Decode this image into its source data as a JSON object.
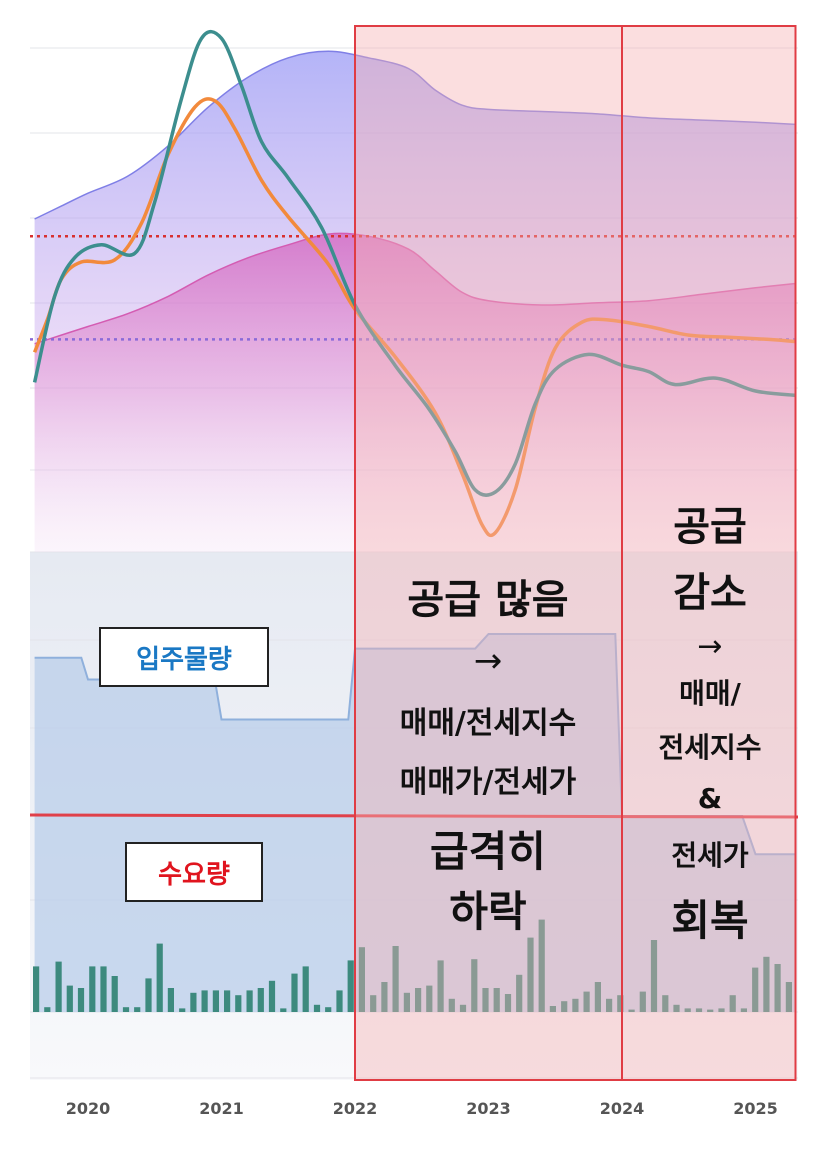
{
  "chart_data": {
    "type": "line",
    "x_axis": {
      "ticks": [
        "2020",
        "2021",
        "2022",
        "2023",
        "2024",
        "2025"
      ]
    },
    "series": [
      {
        "key": "purple_area",
        "color": "#8f8ff2",
        "points": [
          [
            2019.6,
            0.7
          ],
          [
            2019.8,
            0.73
          ],
          [
            2020.0,
            0.76
          ],
          [
            2020.3,
            0.8
          ],
          [
            2020.6,
            0.87
          ],
          [
            2020.9,
            0.96
          ],
          [
            2021.2,
            1.03
          ],
          [
            2021.5,
            1.075
          ],
          [
            2021.8,
            1.09
          ],
          [
            2022.1,
            1.075
          ],
          [
            2022.4,
            1.05
          ],
          [
            2022.6,
            1.0
          ],
          [
            2022.8,
            0.965
          ],
          [
            2023.0,
            0.955
          ],
          [
            2023.4,
            0.95
          ],
          [
            2023.8,
            0.945
          ],
          [
            2024.2,
            0.935
          ],
          [
            2024.6,
            0.93
          ],
          [
            2025.0,
            0.925
          ],
          [
            2025.3,
            0.92
          ]
        ]
      },
      {
        "key": "pink_area",
        "color": "#d860b8",
        "points": [
          [
            2019.6,
            0.41
          ],
          [
            2019.8,
            0.43
          ],
          [
            2020.0,
            0.45
          ],
          [
            2020.3,
            0.48
          ],
          [
            2020.6,
            0.52
          ],
          [
            2020.9,
            0.57
          ],
          [
            2021.2,
            0.61
          ],
          [
            2021.5,
            0.64
          ],
          [
            2021.8,
            0.665
          ],
          [
            2022.1,
            0.66
          ],
          [
            2022.4,
            0.63
          ],
          [
            2022.6,
            0.58
          ],
          [
            2022.8,
            0.53
          ],
          [
            2023.0,
            0.51
          ],
          [
            2023.4,
            0.5
          ],
          [
            2023.8,
            0.505
          ],
          [
            2024.2,
            0.51
          ],
          [
            2024.6,
            0.525
          ],
          [
            2025.0,
            0.54
          ],
          [
            2025.3,
            0.55
          ]
        ]
      },
      {
        "key": "orange_line",
        "color": "#f28a3c",
        "points": [
          [
            2019.6,
            0.39
          ],
          [
            2019.7,
            0.47
          ],
          [
            2019.8,
            0.56
          ],
          [
            2019.95,
            0.6
          ],
          [
            2020.2,
            0.605
          ],
          [
            2020.4,
            0.69
          ],
          [
            2020.6,
            0.85
          ],
          [
            2020.8,
            0.96
          ],
          [
            2020.95,
            0.975
          ],
          [
            2021.1,
            0.91
          ],
          [
            2021.3,
            0.79
          ],
          [
            2021.5,
            0.705
          ],
          [
            2021.8,
            0.595
          ],
          [
            2022.0,
            0.49
          ],
          [
            2022.3,
            0.38
          ],
          [
            2022.6,
            0.25
          ],
          [
            2022.8,
            0.11
          ],
          [
            2022.95,
            -0.01
          ],
          [
            2023.05,
            -0.03
          ],
          [
            2023.2,
            0.07
          ],
          [
            2023.35,
            0.26
          ],
          [
            2023.5,
            0.4
          ],
          [
            2023.7,
            0.46
          ],
          [
            2023.9,
            0.465
          ],
          [
            2024.2,
            0.45
          ],
          [
            2024.5,
            0.43
          ],
          [
            2024.8,
            0.425
          ],
          [
            2025.1,
            0.42
          ],
          [
            2025.3,
            0.415
          ]
        ]
      },
      {
        "key": "teal_line",
        "color": "#3c8e8e",
        "points": [
          [
            2019.6,
            0.32
          ],
          [
            2019.75,
            0.52
          ],
          [
            2019.9,
            0.61
          ],
          [
            2020.1,
            0.64
          ],
          [
            2020.35,
            0.62
          ],
          [
            2020.5,
            0.74
          ],
          [
            2020.7,
            0.98
          ],
          [
            2020.85,
            1.12
          ],
          [
            2021.0,
            1.12
          ],
          [
            2021.15,
            1.01
          ],
          [
            2021.3,
            0.88
          ],
          [
            2021.5,
            0.795
          ],
          [
            2021.75,
            0.68
          ],
          [
            2022.0,
            0.5
          ],
          [
            2022.3,
            0.36
          ],
          [
            2022.55,
            0.26
          ],
          [
            2022.75,
            0.16
          ],
          [
            2022.9,
            0.07
          ],
          [
            2023.05,
            0.065
          ],
          [
            2023.2,
            0.13
          ],
          [
            2023.35,
            0.27
          ],
          [
            2023.5,
            0.35
          ],
          [
            2023.75,
            0.385
          ],
          [
            2024.0,
            0.36
          ],
          [
            2024.2,
            0.345
          ],
          [
            2024.4,
            0.315
          ],
          [
            2024.7,
            0.33
          ],
          [
            2025.0,
            0.3
          ],
          [
            2025.3,
            0.29
          ]
        ]
      }
    ],
    "reference_lines": [
      {
        "color": "#d83030",
        "y": 0.66
      },
      {
        "color": "#8a6ad8",
        "y": 0.42
      }
    ],
    "supply_series": {
      "label": "입주물량",
      "points": [
        [
          2019.6,
          0.87
        ],
        [
          2019.95,
          0.87
        ],
        [
          2020.0,
          0.75
        ],
        [
          2020.95,
          0.75
        ],
        [
          2021.0,
          0.53
        ],
        [
          2021.95,
          0.53
        ],
        [
          2022.0,
          0.92
        ],
        [
          2022.9,
          0.92
        ],
        [
          2023.0,
          1.0
        ],
        [
          2023.95,
          1.0
        ],
        [
          2024.0,
          0.0
        ],
        [
          2024.9,
          0.0
        ],
        [
          2025.0,
          -0.21
        ],
        [
          2025.3,
          -0.21
        ]
      ]
    },
    "demand_series": {
      "label": "수요량",
      "y": 0.0
    },
    "volume_bars": [
      0.38,
      0.04,
      0.42,
      0.22,
      0.2,
      0.38,
      0.38,
      0.3,
      0.04,
      0.04,
      0.28,
      0.57,
      0.2,
      0.03,
      0.16,
      0.18,
      0.18,
      0.18,
      0.14,
      0.18,
      0.2,
      0.26,
      0.03,
      0.32,
      0.38,
      0.06,
      0.04,
      0.18,
      0.43,
      0.54,
      0.14,
      0.25,
      0.55,
      0.16,
      0.2,
      0.22,
      0.43,
      0.11,
      0.06,
      0.44,
      0.2,
      0.2,
      0.15,
      0.31,
      0.62,
      0.77,
      0.05,
      0.09,
      0.11,
      0.17,
      0.25,
      0.11,
      0.14,
      0.02,
      0.17,
      0.6,
      0.14,
      0.06,
      0.03,
      0.03,
      0.02,
      0.03,
      0.14,
      0.03,
      0.37,
      0.46,
      0.4,
      0.25
    ],
    "highlight_regions": [
      {
        "from": 2022.0,
        "to": 2024.0
      },
      {
        "from": 2024.0,
        "to": 2025.3
      }
    ],
    "annotations": {
      "supply_label": "입주물량",
      "demand_label": "수요량",
      "region1": {
        "title": "공급 많음",
        "arrow": "→",
        "line1": "매매/전세지수",
        "line2": "매매가/전세가",
        "line3": "급격히",
        "line4": "하락"
      },
      "region2": {
        "title1": "공급",
        "title2": "감소",
        "arrow": "→",
        "line1": "매매/",
        "line2": "전세지수",
        "line3": "&",
        "line4": "전세가",
        "line5": "회복"
      }
    },
    "grid": true
  }
}
